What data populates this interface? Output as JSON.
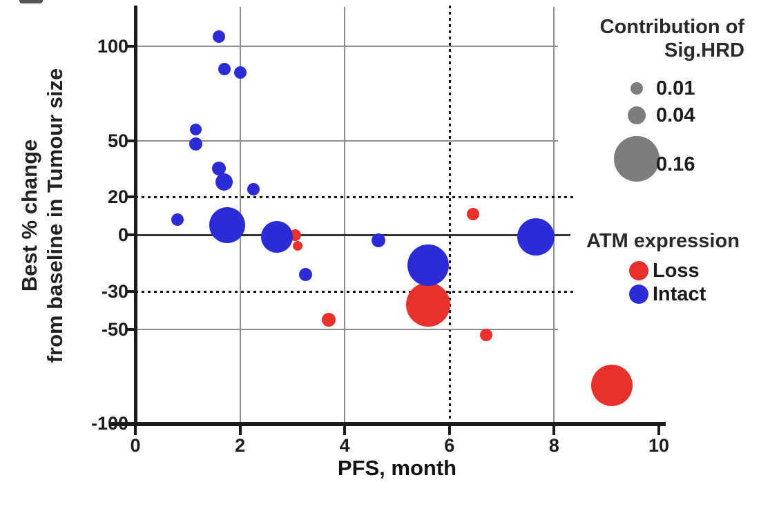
{
  "chart_data": {
    "type": "scatter",
    "subtype": "bubble",
    "xlabel": "PFS, month",
    "ylabel_line1": "Best % change",
    "ylabel_line2": "from baseline in Tumour size",
    "xlim": [
      0,
      10
    ],
    "ylim": [
      -100,
      110
    ],
    "x_ticks": [
      0,
      2,
      4,
      6,
      8,
      10
    ],
    "y_ticks": [
      100,
      50,
      20,
      0,
      -30,
      -50,
      -100
    ],
    "gridlines": {
      "vertical_solid": [
        2,
        4,
        8
      ],
      "vertical_dotted": [
        6
      ],
      "horizontal_solid": [
        100,
        50,
        -50
      ],
      "horizontal_zero": [
        0
      ],
      "horizontal_dotted": [
        20,
        -30
      ]
    },
    "series": [
      {
        "name": "Loss",
        "color": "#e8302c",
        "points": [
          {
            "pfs": 3.05,
            "change": 0,
            "sig": 0.01,
            "r": 8.5
          },
          {
            "pfs": 3.1,
            "change": -6,
            "sig": 0.01,
            "r": 7
          },
          {
            "pfs": 3.7,
            "change": -45,
            "sig": 0.015,
            "r": 10
          },
          {
            "pfs": 6.45,
            "change": 11,
            "sig": 0.012,
            "r": 9
          },
          {
            "pfs": 6.7,
            "change": -53,
            "sig": 0.012,
            "r": 9
          },
          {
            "pfs": 5.6,
            "change": -37,
            "sig": 0.17,
            "r": 32
          },
          {
            "pfs": 9.1,
            "change": -80,
            "sig": 0.15,
            "r": 30
          }
        ]
      },
      {
        "name": "Intact",
        "color": "#2b2bd8",
        "points": [
          {
            "pfs": 1.6,
            "change": 105,
            "sig": 0.012,
            "r": 9
          },
          {
            "pfs": 1.7,
            "change": 88,
            "sig": 0.012,
            "r": 9
          },
          {
            "pfs": 2.0,
            "change": 86,
            "sig": 0.012,
            "r": 9
          },
          {
            "pfs": 1.15,
            "change": 56,
            "sig": 0.011,
            "r": 8.5
          },
          {
            "pfs": 1.15,
            "change": 48,
            "sig": 0.013,
            "r": 9.5
          },
          {
            "pfs": 1.6,
            "change": 35,
            "sig": 0.015,
            "r": 10
          },
          {
            "pfs": 1.7,
            "change": 28,
            "sig": 0.026,
            "r": 12.5
          },
          {
            "pfs": 2.25,
            "change": 24,
            "sig": 0.012,
            "r": 9
          },
          {
            "pfs": 0.8,
            "change": 8,
            "sig": 0.012,
            "r": 9
          },
          {
            "pfs": 1.75,
            "change": 5,
            "sig": 0.11,
            "r": 26
          },
          {
            "pfs": 2.7,
            "change": -1,
            "sig": 0.088,
            "r": 23
          },
          {
            "pfs": 3.25,
            "change": -21,
            "sig": 0.013,
            "r": 9.5
          },
          {
            "pfs": 4.65,
            "change": -3,
            "sig": 0.015,
            "r": 10
          },
          {
            "pfs": 5.6,
            "change": -16,
            "sig": 0.15,
            "r": 30
          },
          {
            "pfs": 7.65,
            "change": -1,
            "sig": 0.12,
            "r": 27
          }
        ]
      }
    ],
    "size_legend": {
      "title_line1": "Contribution of",
      "title_line2": "Sig.HRD",
      "items": [
        {
          "label": "0.01",
          "r": 9
        },
        {
          "label": "0.04",
          "r": 13
        },
        {
          "label": "0.16",
          "r": 33
        }
      ],
      "swatch_color": "#7d7d7d"
    },
    "color_legend": {
      "title": "ATM expression",
      "items": [
        {
          "label": "Loss",
          "color": "#e8302c"
        },
        {
          "label": "Intact",
          "color": "#2b2bd8"
        }
      ]
    }
  }
}
